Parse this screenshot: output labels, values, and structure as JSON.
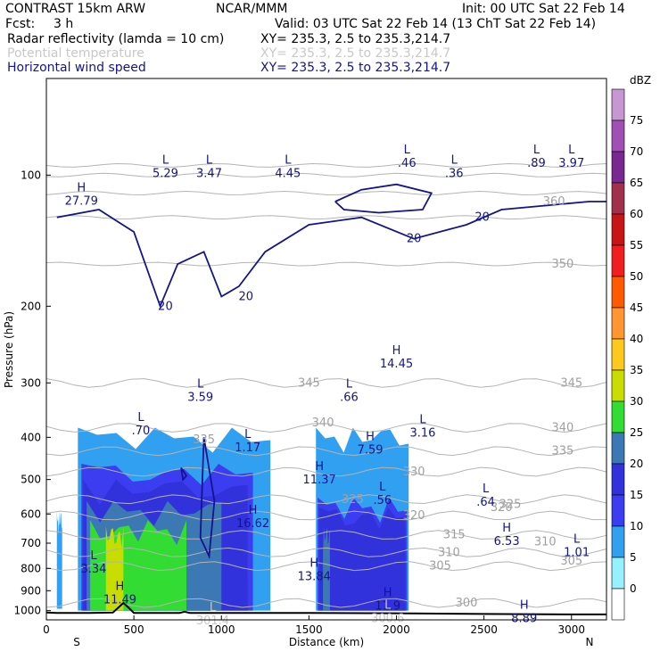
{
  "header": {
    "title": "CONTRAST 15km ARW",
    "center": "NCAR/MMM",
    "init": "Init: 00 UTC Sat 22 Feb 14",
    "fcst_label": "Fcst:",
    "fcst_value": "3 h",
    "valid": "Valid: 03 UTC Sat 22 Feb 14 (13 ChT Sat 22 Feb 14)",
    "fields": [
      {
        "name": "Radar reflectivity (lamda = 10 cm)",
        "xy": "XY= 235.3,  2.5 to 235.3,214.7",
        "color": "#000000"
      },
      {
        "name": "Potential temperature",
        "xy": "XY= 235.3,  2.5 to 235.3,214.7",
        "color": "#c8c8c8"
      },
      {
        "name": "Horizontal wind speed",
        "xy": "XY= 235.3,  2.5 to 235.3,214.7",
        "color": "#14148c"
      }
    ]
  },
  "chart_data": {
    "type": "heatmap",
    "xlabel": "Distance (km)",
    "ylabel": "Pressure (hPa)",
    "xlim": [
      0,
      3200
    ],
    "ylim": [
      1050,
      60
    ],
    "y_scale": "log",
    "x_ticks": [
      "0",
      "500",
      "1000",
      "1500",
      "2000",
      "2500",
      "3000"
    ],
    "x_tick_values": [
      0,
      500,
      1000,
      1500,
      2000,
      2500,
      3000
    ],
    "y_ticks": [
      "100",
      "200",
      "300",
      "400",
      "500",
      "600",
      "700",
      "800",
      "900",
      "1000"
    ],
    "y_tick_values": [
      100,
      200,
      300,
      400,
      500,
      600,
      700,
      800,
      900,
      1000
    ],
    "side_labels": {
      "left": "S",
      "right": "N"
    },
    "colorbar": {
      "unit": "dBZ",
      "levels": [
        "75",
        "70",
        "65",
        "60",
        "55",
        "50",
        "45",
        "40",
        "35",
        "30",
        "25",
        "20",
        "15",
        "10",
        "5",
        "0"
      ],
      "colors": [
        "#c896d2",
        "#a050b4",
        "#782890",
        "#a0304c",
        "#c81414",
        "#f01e1e",
        "#ff5a00",
        "#ff9632",
        "#ffc81e",
        "#c8dc00",
        "#32dc32",
        "#3c78b4",
        "#3232dc",
        "#3c3cf0",
        "#32a0f0",
        "#96f0ff",
        "#ffffff"
      ]
    },
    "reflectivity_regions": [
      {
        "x0": 60,
        "x1": 90,
        "p0": 590,
        "p1": 990,
        "level": "5"
      },
      {
        "x0": 180,
        "x1": 1280,
        "p0": 380,
        "p1": 1000,
        "level": "5"
      },
      {
        "x0": 200,
        "x1": 1180,
        "p0": 460,
        "p1": 1000,
        "level": "10"
      },
      {
        "x0": 210,
        "x1": 1150,
        "p0": 500,
        "p1": 1000,
        "level": "15"
      },
      {
        "x0": 230,
        "x1": 1000,
        "p0": 560,
        "p1": 1000,
        "level": "20"
      },
      {
        "x0": 250,
        "x1": 800,
        "p0": 620,
        "p1": 1000,
        "level": "25"
      },
      {
        "x0": 340,
        "x1": 440,
        "p0": 640,
        "p1": 1000,
        "level": "30"
      },
      {
        "x0": 1540,
        "x1": 2070,
        "p0": 380,
        "p1": 1000,
        "level": "5"
      },
      {
        "x0": 1550,
        "x1": 2060,
        "p0": 550,
        "p1": 1000,
        "level": "10"
      },
      {
        "x0": 1560,
        "x1": 2050,
        "p0": 580,
        "p1": 1000,
        "level": "15"
      },
      {
        "x0": 1580,
        "x1": 1620,
        "p0": 640,
        "p1": 1000,
        "level": "20"
      }
    ],
    "theta_contour_labels": [
      {
        "x": 1500,
        "p": 300,
        "text": "345"
      },
      {
        "x": 1580,
        "p": 370,
        "text": "340"
      },
      {
        "x": 900,
        "p": 405,
        "text": "335"
      },
      {
        "x": 2100,
        "p": 480,
        "text": "330"
      },
      {
        "x": 1750,
        "p": 555,
        "text": "325"
      },
      {
        "x": 2100,
        "p": 605,
        "text": "320"
      },
      {
        "x": 2330,
        "p": 670,
        "text": "315"
      },
      {
        "x": 2300,
        "p": 735,
        "text": "310"
      },
      {
        "x": 2250,
        "p": 790,
        "text": "305"
      },
      {
        "x": 2400,
        "p": 960,
        "text": "300"
      },
      {
        "x": 2900,
        "p": 115,
        "text": "360"
      },
      {
        "x": 2950,
        "p": 160,
        "text": "350"
      },
      {
        "x": 3000,
        "p": 300,
        "text": "345"
      },
      {
        "x": 2950,
        "p": 380,
        "text": "340"
      },
      {
        "x": 2950,
        "p": 430,
        "text": "335"
      },
      {
        "x": 2650,
        "p": 570,
        "text": "325"
      },
      {
        "x": 2600,
        "p": 580,
        "text": "320"
      },
      {
        "x": 2850,
        "p": 695,
        "text": "310"
      },
      {
        "x": 3000,
        "p": 770,
        "text": "305"
      }
    ],
    "wind_contour_labels": [
      {
        "x": 680,
        "p": 200,
        "text": "20"
      },
      {
        "x": 1140,
        "p": 190,
        "text": "20"
      },
      {
        "x": 2100,
        "p": 140,
        "text": "20"
      },
      {
        "x": 2490,
        "p": 125,
        "text": "20"
      }
    ],
    "extrema": [
      {
        "type": "L",
        "value": "5.29",
        "x": 680,
        "p": 95,
        "color": "#14148c"
      },
      {
        "type": "L",
        "value": "3.47",
        "x": 930,
        "p": 95,
        "color": "#14148c"
      },
      {
        "type": "L",
        "value": "4.45",
        "x": 1380,
        "p": 95,
        "color": "#14148c"
      },
      {
        "type": "L",
        "value": ".46",
        "x": 2060,
        "p": 90,
        "color": "#14148c"
      },
      {
        "type": "L",
        "value": ".36",
        "x": 2330,
        "p": 95,
        "color": "#14148c"
      },
      {
        "type": "L",
        "value": ".89",
        "x": 2800,
        "p": 90,
        "color": "#14148c"
      },
      {
        "type": "L",
        "value": "3.97",
        "x": 3000,
        "p": 90,
        "color": "#14148c"
      },
      {
        "type": "H",
        "value": "27.79",
        "x": 200,
        "p": 110,
        "color": "#14148c"
      },
      {
        "type": "H",
        "value": "14.45",
        "x": 2000,
        "p": 260,
        "color": "#14148c"
      },
      {
        "type": "L",
        "value": "3.59",
        "x": 880,
        "p": 310,
        "color": "#14148c"
      },
      {
        "type": "L",
        "value": ".66",
        "x": 1730,
        "p": 310,
        "color": "#14148c"
      },
      {
        "type": "L",
        "value": ".70",
        "x": 540,
        "p": 370,
        "color": "#14148c"
      },
      {
        "type": "L",
        "value": "3.16",
        "x": 2150,
        "p": 375,
        "color": "#14148c"
      },
      {
        "type": "L",
        "value": "1.17",
        "x": 1150,
        "p": 405,
        "color": "#14148c"
      },
      {
        "type": "H",
        "value": "7.59",
        "x": 1850,
        "p": 410,
        "color": "#14148c"
      },
      {
        "type": "H",
        "value": "11.37",
        "x": 1560,
        "p": 480,
        "color": "#14148c"
      },
      {
        "type": "L",
        "value": ".56",
        "x": 1920,
        "p": 535,
        "color": "#14148c"
      },
      {
        "type": "L",
        "value": ".64",
        "x": 2510,
        "p": 540,
        "color": "#14148c"
      },
      {
        "type": "H",
        "value": "16.62",
        "x": 1180,
        "p": 605,
        "color": "#14148c"
      },
      {
        "type": "H",
        "value": "6.53",
        "x": 2630,
        "p": 665,
        "color": "#14148c"
      },
      {
        "type": "L",
        "value": "1.01",
        "x": 3030,
        "p": 705,
        "color": "#14148c"
      },
      {
        "type": "L",
        "value": "3.34",
        "x": 270,
        "p": 770,
        "color": "#14148c"
      },
      {
        "type": "H",
        "value": "13.84",
        "x": 1530,
        "p": 800,
        "color": "#14148c"
      },
      {
        "type": "H",
        "value": "11.49",
        "x": 420,
        "p": 905,
        "color": "#14148c"
      },
      {
        "type": "H",
        "value": "11.9",
        "x": 1950,
        "p": 935,
        "color": "#14148c"
      },
      {
        "type": "L",
        "value": "301.4",
        "x": 950,
        "p": 1010,
        "color": "#c8c8c8"
      },
      {
        "type": "L",
        "value": "300.6",
        "x": 1950,
        "p": 1000,
        "color": "#c8c8c8"
      },
      {
        "type": "H",
        "value": "8.89",
        "x": 2730,
        "p": 1000,
        "color": "#14148c"
      }
    ],
    "terrain": [
      [
        0,
        1010
      ],
      [
        60,
        1012
      ],
      [
        100,
        1012
      ],
      [
        250,
        1012
      ],
      [
        380,
        1010
      ],
      [
        410,
        985
      ],
      [
        440,
        960
      ],
      [
        470,
        985
      ],
      [
        500,
        1012
      ],
      [
        760,
        1012
      ],
      [
        790,
        1006
      ],
      [
        820,
        1012
      ],
      [
        1500,
        1012
      ],
      [
        2000,
        1014
      ],
      [
        2500,
        1018
      ],
      [
        3000,
        1020
      ],
      [
        3200,
        1020
      ]
    ]
  }
}
